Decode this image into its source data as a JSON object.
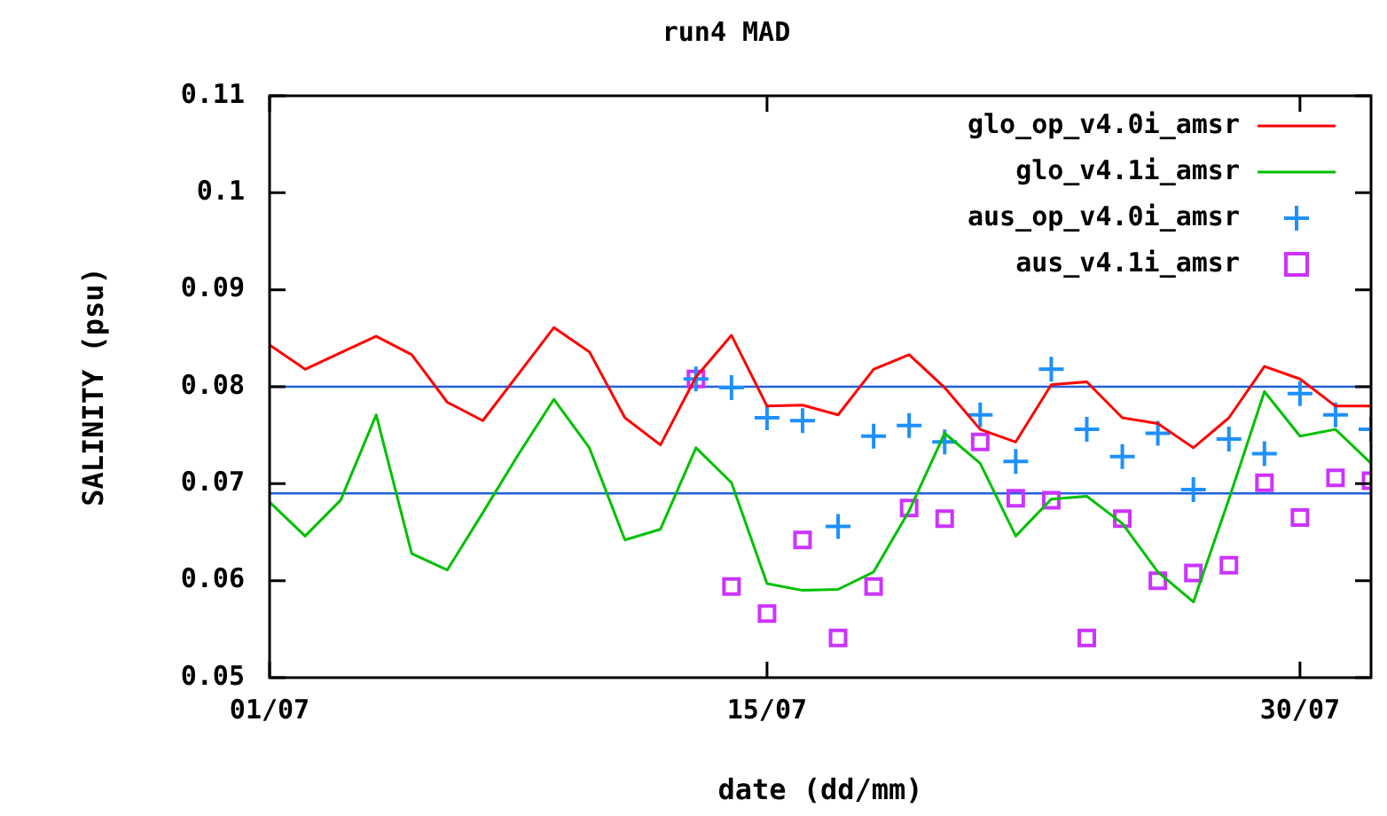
{
  "chart_data": {
    "type": "line",
    "title": "run4 MAD",
    "xlabel": "date (dd/mm)",
    "ylabel": "SALINITY (psu)",
    "x": [
      "--07-01",
      "--07-02",
      "--07-03",
      "--07-04",
      "--07-05",
      "--07-06",
      "--07-07",
      "--07-08",
      "--07-09",
      "--07-10",
      "--07-11",
      "--07-12",
      "--07-13",
      "--07-14",
      "--07-15",
      "--07-16",
      "--07-17",
      "--07-18",
      "--07-19",
      "--07-20",
      "--07-21",
      "--07-22",
      "--07-23",
      "--07-24",
      "--07-25",
      "--07-26",
      "--07-27",
      "--07-28",
      "--07-29",
      "--07-30",
      "--07-31",
      "--08-01"
    ],
    "series": [
      {
        "name": "glo_op_v4.0i_amsr",
        "color": "#ff0000",
        "marker": "none",
        "values": [
          0.0843,
          0.0818,
          0.0835,
          0.0852,
          0.0833,
          0.0784,
          0.0765,
          0.0813,
          0.0861,
          0.0836,
          0.0768,
          0.074,
          0.081,
          0.0853,
          0.078,
          0.0781,
          0.0771,
          0.0818,
          0.0833,
          0.0799,
          0.0756,
          0.0743,
          0.0802,
          0.0805,
          0.0768,
          0.0762,
          0.0737,
          0.0768,
          0.0821,
          0.0808,
          0.078,
          0.078
        ]
      },
      {
        "name": "glo_v4.1i_amsr",
        "color": "#00c000",
        "marker": "none",
        "values": [
          0.0681,
          0.0646,
          0.0683,
          0.0771,
          0.0628,
          0.0611,
          0.067,
          0.073,
          0.0787,
          0.0737,
          0.0642,
          0.0653,
          0.0737,
          0.0701,
          0.0597,
          0.059,
          0.0591,
          0.0609,
          0.0672,
          0.0752,
          0.0721,
          0.0646,
          0.0684,
          0.0687,
          0.0659,
          0.0609,
          0.0578,
          0.0684,
          0.0795,
          0.0749,
          0.0756,
          0.0721
        ]
      },
      {
        "name": "aus_op_v4.0i_amsr",
        "type": "scatter",
        "color": "#1e90ff",
        "marker": "cross",
        "x": [
          "--07-13",
          "--07-14",
          "--07-15",
          "--07-16",
          "--07-17",
          "--07-18",
          "--07-19",
          "--07-20",
          "--07-21",
          "--07-22",
          "--07-23",
          "--07-24",
          "--07-25",
          "--07-26",
          "--07-27",
          "--07-28",
          "--07-29",
          "--07-30",
          "--07-31",
          "--08-01"
        ],
        "values": [
          0.0808,
          0.0799,
          0.0768,
          0.0765,
          0.0656,
          0.0749,
          0.076,
          0.0743,
          0.0771,
          0.0723,
          0.0818,
          0.0756,
          0.0728,
          0.0752,
          0.0694,
          0.0746,
          0.0731,
          0.0793,
          0.0771,
          0.0756
        ]
      },
      {
        "name": "aus_v4.1i_amsr",
        "type": "scatter",
        "color": "#cc33ff",
        "marker": "square",
        "x": [
          "--07-13",
          "--07-14",
          "--07-15",
          "--07-16",
          "--07-17",
          "--07-18",
          "--07-19",
          "--07-20",
          "--07-21",
          "--07-22",
          "--07-23",
          "--07-24",
          "--07-25",
          "--07-26",
          "--07-27",
          "--07-28",
          "--07-29",
          "--07-30",
          "--07-31",
          "--08-01"
        ],
        "values": [
          0.0808,
          0.0594,
          0.0566,
          0.0642,
          0.0541,
          0.0594,
          0.0675,
          0.0664,
          0.0743,
          0.0685,
          0.0683,
          0.0541,
          0.0664,
          0.06,
          0.0608,
          0.0616,
          0.0701,
          0.0665,
          0.0706,
          0.0703
        ]
      }
    ],
    "xlim": [
      "--07-01",
      "--08-01"
    ],
    "xticks": [
      {
        "value": "--07-01",
        "label": "01/07"
      },
      {
        "value": "--07-15",
        "label": "15/07"
      },
      {
        "value": "--07-30",
        "label": "30/07"
      }
    ],
    "ylim": [
      0.05,
      0.11
    ],
    "yticks": [
      {
        "value": 0.05,
        "label": "0.05"
      },
      {
        "value": 0.06,
        "label": "0.06"
      },
      {
        "value": 0.07,
        "label": "0.07"
      },
      {
        "value": 0.08,
        "label": "0.08"
      },
      {
        "value": 0.09,
        "label": "0.09"
      },
      {
        "value": 0.1,
        "label": "0.1"
      },
      {
        "value": 0.11,
        "label": "0.11"
      }
    ],
    "ref_lines": [
      {
        "axis": "y",
        "value": 0.08,
        "color": "#2060e0"
      },
      {
        "axis": "y",
        "value": 0.069,
        "color": "#2060e0"
      }
    ],
    "legend": "top right",
    "grid": false
  }
}
